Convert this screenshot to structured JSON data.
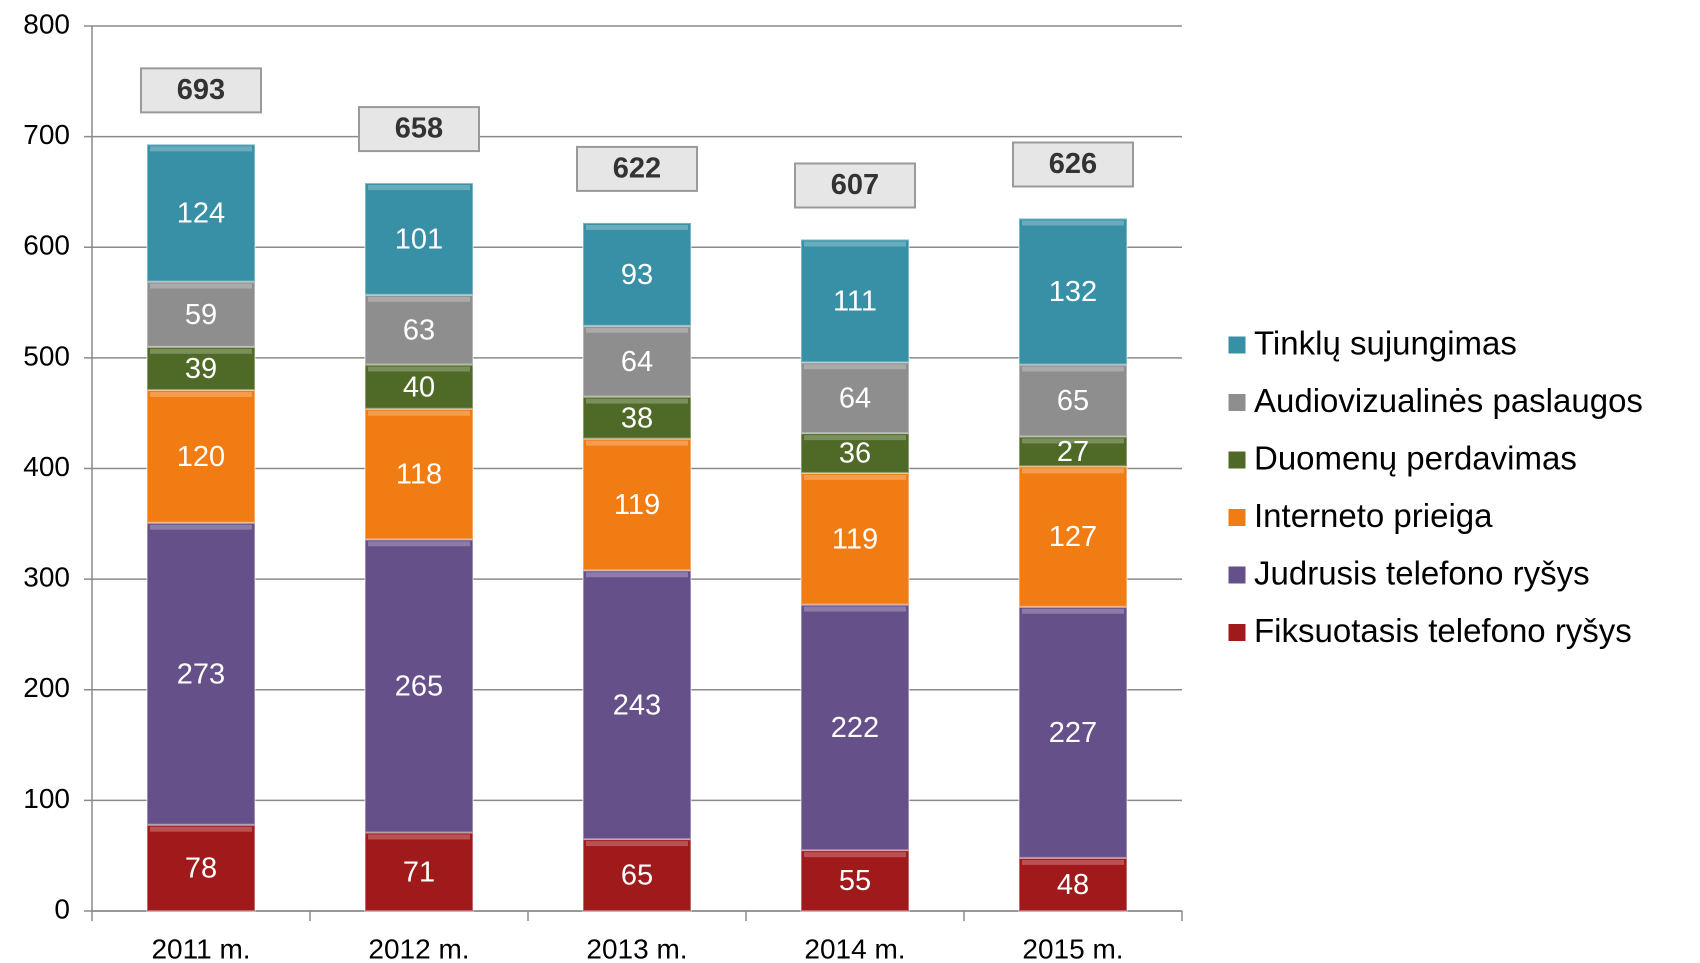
{
  "chart_data": {
    "type": "stacked_bar",
    "categories": [
      "2011 m.",
      "2012 m.",
      "2013 m.",
      "2014 m.",
      "2015 m."
    ],
    "series": [
      {
        "name": "Fiksuotasis telefono ryšys",
        "color": "#a0191b",
        "values": [
          78,
          71,
          65,
          55,
          48
        ]
      },
      {
        "name": "Judrusis telefono ryšys",
        "color": "#66508a",
        "values": [
          273,
          265,
          243,
          222,
          227
        ]
      },
      {
        "name": "Interneto prieiga",
        "color": "#f27c14",
        "values": [
          120,
          118,
          119,
          119,
          127
        ]
      },
      {
        "name": "Duomenų perdavimas",
        "color": "#4f6a26",
        "values": [
          39,
          40,
          38,
          36,
          27
        ]
      },
      {
        "name": "Audiovizualinės paslaugos",
        "color": "#8e8e8e",
        "values": [
          59,
          63,
          64,
          64,
          65
        ]
      },
      {
        "name": "Tinklų sujungimas",
        "color": "#3790a6",
        "values": [
          124,
          101,
          93,
          111,
          132
        ]
      }
    ],
    "totals": [
      693,
      658,
      622,
      607,
      626
    ],
    "ylim": [
      0,
      800
    ],
    "yticks": [
      0,
      100,
      200,
      300,
      400,
      500,
      600,
      700,
      800
    ],
    "grid": true,
    "legend": "right"
  }
}
